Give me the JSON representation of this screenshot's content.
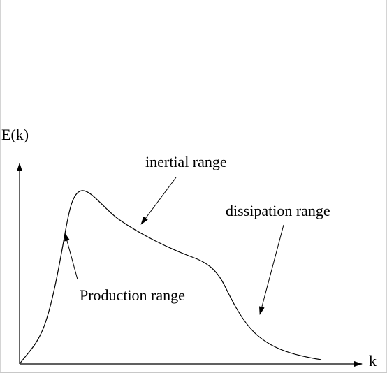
{
  "axes": {
    "y_label": "E(k)",
    "x_label": "k"
  },
  "annotations": {
    "inertial": "inertial range",
    "dissipation": "dissipation range",
    "production": "Production range"
  },
  "colors": {
    "stroke": "#000000",
    "background": "#ffffff"
  }
}
